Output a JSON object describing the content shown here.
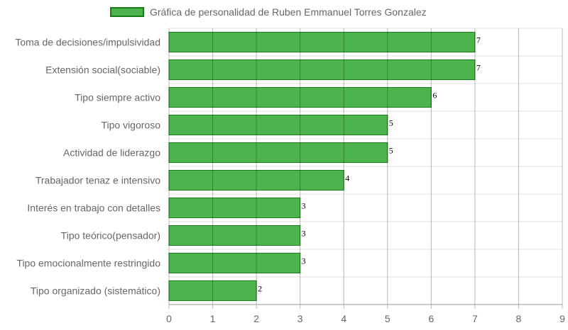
{
  "chart_data": {
    "type": "bar",
    "orientation": "horizontal",
    "categories": [
      "Toma de decisiones/impulsividad",
      "Extensión social(sociable)",
      "Tipo siempre activo",
      "Tipo vigoroso",
      "Actividad de liderazgo",
      "Trabajador tenaz e intensivo",
      "Interés en trabajo con detalles",
      "Tipo teórico(pensador)",
      "Tipo emocionalmente restringido",
      "Tipo organizado (sistemático)"
    ],
    "series": [
      {
        "name": "Gráfica de personalidad de Ruben Emmanuel Torres Gonzalez",
        "values": [
          7,
          7,
          6,
          5,
          5,
          4,
          3,
          3,
          3,
          2
        ]
      }
    ],
    "xlim": [
      0,
      9
    ],
    "x_ticks": [
      "0",
      "1",
      "2",
      "3",
      "4",
      "5",
      "6",
      "7",
      "8",
      "9"
    ],
    "grid": true,
    "legend_position": "top",
    "data_labels": true,
    "colors": {
      "bar_fill": "#4db34d",
      "bar_border": "#1a7a1a"
    }
  }
}
